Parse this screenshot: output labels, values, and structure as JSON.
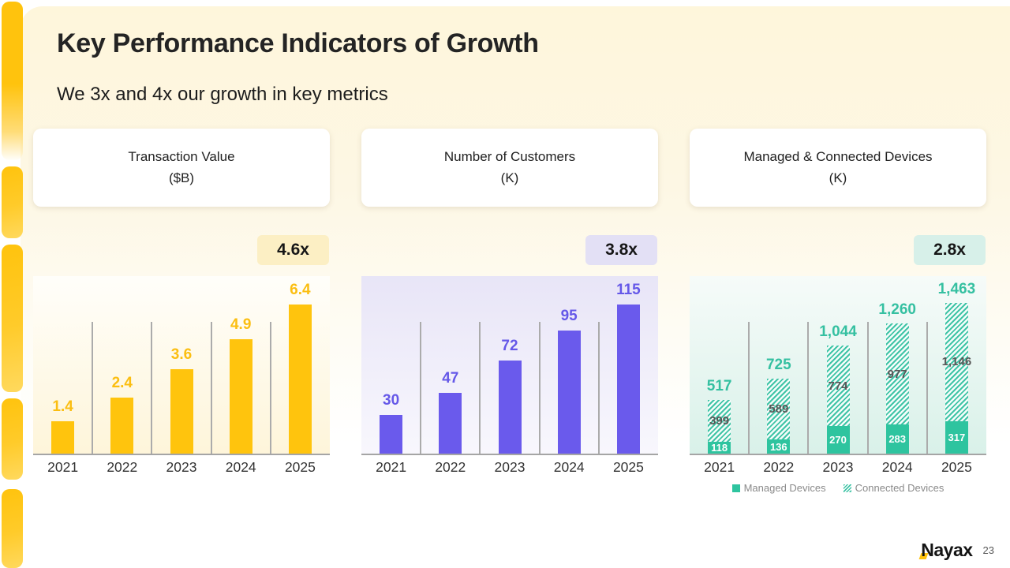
{
  "slide": {
    "title": "Key Performance Indicators of Growth",
    "subtitle": "We 3x and 4x our growth in key metrics"
  },
  "cards": [
    {
      "line1": "Transaction Value",
      "line2": "($B)"
    },
    {
      "line1": "Number of Customers",
      "line2": "(K)"
    },
    {
      "line1": "Managed & Connected Devices",
      "line2": "(K)"
    }
  ],
  "chart_data": [
    {
      "type": "bar",
      "title": "Transaction Value ($B)",
      "multiplier_badge": "4.6x",
      "categories": [
        "2021",
        "2022",
        "2023",
        "2024",
        "2025"
      ],
      "values": [
        1.4,
        2.4,
        3.6,
        4.9,
        6.4
      ],
      "value_labels": [
        "1.4",
        "2.4",
        "3.6",
        "4.9",
        "6.4"
      ],
      "ylim": [
        0,
        7.6
      ],
      "grid": "vertical-separators-between-categories",
      "legend": "none",
      "bar_color": "#FFC40D",
      "label_color": "#FBBE11",
      "badge_bg": "#FCEFC4"
    },
    {
      "type": "bar",
      "title": "Number of Customers (K)",
      "multiplier_badge": "3.8x",
      "categories": [
        "2021",
        "2022",
        "2023",
        "2024",
        "2025"
      ],
      "values": [
        30,
        47,
        72,
        95,
        115
      ],
      "value_labels": [
        "30",
        "47",
        "72",
        "95",
        "115"
      ],
      "ylim": [
        0,
        137
      ],
      "grid": "vertical-separators-between-categories",
      "legend": "none",
      "bar_color": "#6A5AEC",
      "label_color": "#6558E8",
      "badge_bg": "#E3E0F5"
    },
    {
      "type": "stacked-bar",
      "title": "Managed & Connected Devices (K)",
      "multiplier_badge": "2.8x",
      "categories": [
        "2021",
        "2022",
        "2023",
        "2024",
        "2025"
      ],
      "series": [
        {
          "name": "Managed Devices",
          "style": "solid",
          "values": [
            118,
            136,
            270,
            283,
            317
          ],
          "value_labels": [
            "118",
            "136",
            "270",
            "283",
            "317"
          ]
        },
        {
          "name": "Connected Devices",
          "style": "hatched",
          "values": [
            399,
            589,
            774,
            977,
            1146
          ],
          "value_labels": [
            "399",
            "589",
            "774",
            "977",
            "1,146"
          ]
        }
      ],
      "totals": [
        517,
        725,
        1044,
        1260,
        1463
      ],
      "total_labels": [
        "517",
        "725",
        "1,044",
        "1,260",
        "1,463"
      ],
      "ylim": [
        0,
        1720
      ],
      "grid": "vertical-separators-between-categories",
      "legend_position": "bottom",
      "solid_color": "#2EC49F",
      "hatch_color": "#3FC4A6",
      "total_label_color": "#35C0A1",
      "inner_label_color": "#575757",
      "badge_bg": "#D7F0E9"
    }
  ],
  "footer": {
    "logo_text": "Nayax",
    "page_number": "23"
  }
}
